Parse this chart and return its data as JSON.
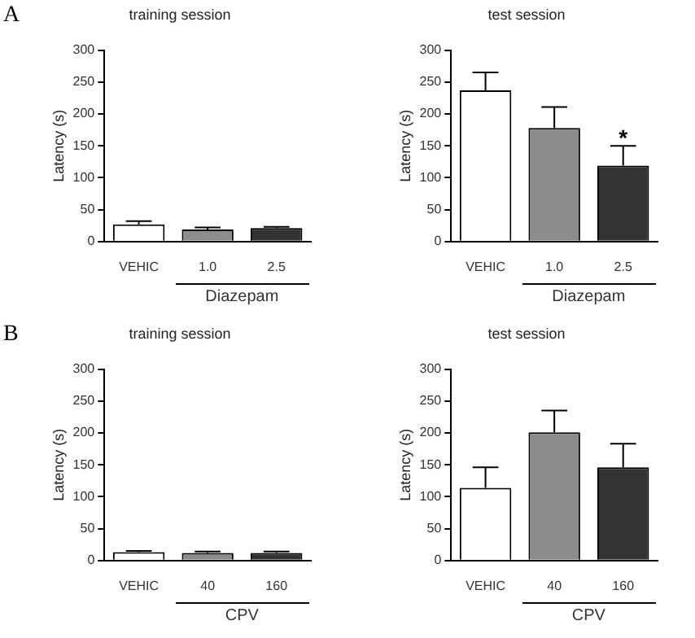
{
  "chart_data": [
    {
      "type": "bar",
      "title": "training session",
      "ylabel": "Latency (s)",
      "xlabel": "Diazepam",
      "categories": [
        "VEHIC",
        "1.0",
        "2.5"
      ],
      "values": [
        27,
        19,
        21
      ],
      "errors": [
        5,
        3,
        2
      ],
      "colors": [
        "#ffffff",
        "#8c8c8c",
        "#333333"
      ],
      "ylim": [
        0,
        300
      ],
      "yticks": [
        0,
        50,
        100,
        150,
        200,
        250,
        300
      ],
      "annotations": [
        "A"
      ]
    },
    {
      "type": "bar",
      "title": "test session",
      "ylabel": "Latency (s)",
      "xlabel": "Diazepam",
      "categories": [
        "VEHIC",
        "1.0",
        "2.5"
      ],
      "values": [
        237,
        178,
        119
      ],
      "errors": [
        28,
        33,
        31
      ],
      "colors": [
        "#ffffff",
        "#8c8c8c",
        "#333333"
      ],
      "ylim": [
        0,
        300
      ],
      "yticks": [
        0,
        50,
        100,
        150,
        200,
        250,
        300
      ],
      "annotations": [
        {
          "text": "*",
          "x": "2.5",
          "y": 160
        }
      ]
    },
    {
      "type": "bar",
      "title": "training session",
      "ylabel": "Latency (s)",
      "xlabel": "CPV",
      "categories": [
        "VEHIC",
        "40",
        "160"
      ],
      "values": [
        13,
        12,
        12
      ],
      "errors": [
        2,
        2,
        2
      ],
      "colors": [
        "#ffffff",
        "#8c8c8c",
        "#333333"
      ],
      "ylim": [
        0,
        300
      ],
      "yticks": [
        0,
        50,
        100,
        150,
        200,
        250,
        300
      ],
      "annotations": [
        "B"
      ]
    },
    {
      "type": "bar",
      "title": "test session",
      "ylabel": "Latency (s)",
      "xlabel": "CPV",
      "categories": [
        "VEHIC",
        "40",
        "160"
      ],
      "values": [
        114,
        201,
        146
      ],
      "errors": [
        32,
        34,
        37
      ],
      "colors": [
        "#ffffff",
        "#8c8c8c",
        "#333333"
      ],
      "ylim": [
        0,
        300
      ],
      "yticks": [
        0,
        50,
        100,
        150,
        200,
        250,
        300
      ]
    }
  ]
}
